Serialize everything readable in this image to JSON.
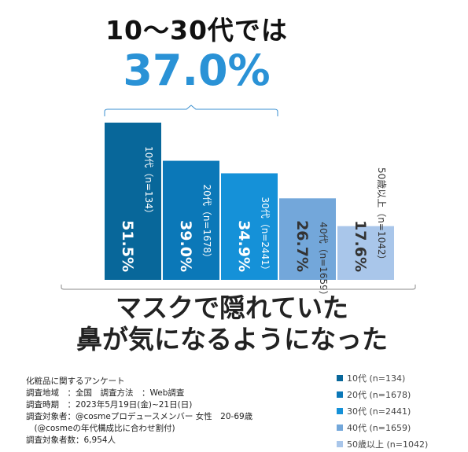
{
  "headline": "10〜30代では",
  "highlight": "37.0%",
  "subtitle_lines": [
    "マスクで隠れていた",
    "鼻が気になるようになった"
  ],
  "chart_data": {
    "type": "bar",
    "categories": [
      "10代（n=134）",
      "20代（n=1678）",
      "30代（n=2441）",
      "40代（n=1659）",
      "50歳以上（n=1042）"
    ],
    "values": [
      51.5,
      39.0,
      34.9,
      26.7,
      17.6
    ],
    "value_labels": [
      "51.5%",
      "39.0%",
      "34.9%",
      "26.7%",
      "17.6%"
    ],
    "colors": [
      "#08679a",
      "#0b78b8",
      "#1591d8",
      "#73a7da",
      "#a9c6ea"
    ],
    "label_colors": [
      "#ffffff",
      "#ffffff",
      "#ffffff",
      "#333333",
      "#333333"
    ],
    "ylim": [
      0,
      55
    ],
    "title": "",
    "xlabel": "",
    "ylabel": ""
  },
  "legend": [
    {
      "label": "10代 (n=134)",
      "color": "#08679a"
    },
    {
      "label": "20代 (n=1678)",
      "color": "#0b78b8"
    },
    {
      "label": "30代 (n=2441)",
      "color": "#1591d8"
    },
    {
      "label": "40代 (n=1659)",
      "color": "#73a7da"
    },
    {
      "label": "50歳以上 (n=1042)",
      "color": "#a9c6ea"
    }
  ],
  "notes": [
    "化粧品に関するアンケート",
    "調査地域　：全国　調査方法　：Web調査",
    "調査時期　：2023年5月19日(金)~21日(日)",
    "調査対象者：@cosmeプロデュースメンバー 女性　20-69歳",
    "　(@cosmeの年代構成比に合わせ割付)",
    "調査対象者数：6,954人"
  ]
}
